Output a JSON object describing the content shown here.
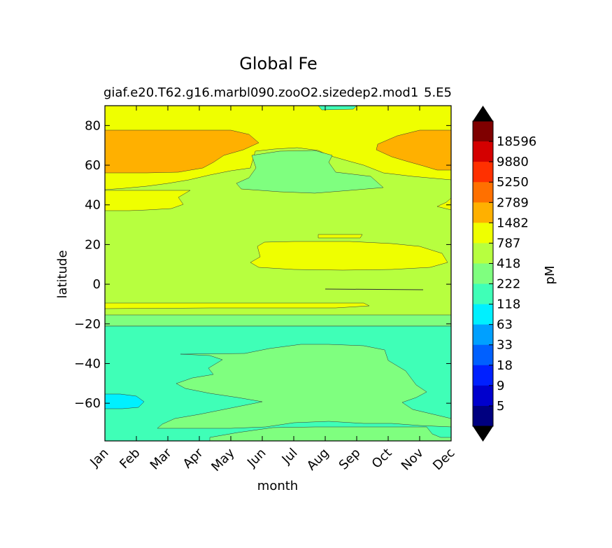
{
  "chart_data": {
    "type": "heatmap",
    "subtype": "filled-contour",
    "title": "Global Fe",
    "subtitle_left": "giaf.e20.T62.g16.marbl090.zooO2.sizedep2.mod1",
    "subtitle_right": "5.E5",
    "xlabel": "month",
    "ylabel": "latitude",
    "x_categories": [
      "Jan",
      "Feb",
      "Mar",
      "Apr",
      "May",
      "Jun",
      "Jul",
      "Aug",
      "Sep",
      "Oct",
      "Nov",
      "Dec"
    ],
    "xlim": [
      0,
      11
    ],
    "ylim": [
      -79,
      90
    ],
    "y_ticks": [
      80,
      60,
      40,
      20,
      0,
      -20,
      -40,
      -60
    ],
    "colorbar": {
      "label": "pM",
      "tick_labels": [
        "18596",
        "9880",
        "5250",
        "2789",
        "1482",
        "787",
        "418",
        "222",
        "118",
        "63",
        "33",
        "18",
        "9",
        "5"
      ],
      "colors_top_to_bottom": [
        "#7f0000",
        "#d40000",
        "#ff3000",
        "#ff7000",
        "#ffb000",
        "#efff00",
        "#b7ff3f",
        "#7fff7f",
        "#3fffb7",
        "#00f0ff",
        "#00a0ff",
        "#0060ff",
        "#0020ff",
        "#0000cd",
        "#000080"
      ],
      "extend_colors": {
        "over": "#000000",
        "under": "#000000"
      }
    },
    "regions": [
      {
        "name": "band-787-1482",
        "value_range": [
          787,
          1482
        ],
        "color": "#b7ff3f",
        "extent": "domain background, latitudes -20 to 90"
      },
      {
        "name": "band-418-787",
        "value_range": [
          418,
          787
        ],
        "color": "#7fff7f",
        "extent": "latitudes -15 to -20 all months; southern ocean Feb-Nov"
      },
      {
        "name": "band-222-418",
        "value_range": [
          222,
          418
        ],
        "color": "#3fffb7",
        "extent": "latitudes -20 to -79"
      },
      {
        "name": "band-118-222",
        "value_range": [
          118,
          222
        ],
        "color": "#00f0ff",
        "extent": "Jan, latitudes -55 to -62"
      },
      {
        "name": "band-1482-2789",
        "value_range": [
          1482,
          2789
        ],
        "color": "#efff00",
        "extent": "northern high latitudes and tropical band Jun-Dec"
      },
      {
        "name": "band-2789-5250",
        "value_range": [
          2789,
          5250
        ],
        "color": "#ffb000",
        "extent": "latitudes 55 to 78, Jan-Apr and Oct-Dec"
      }
    ]
  }
}
